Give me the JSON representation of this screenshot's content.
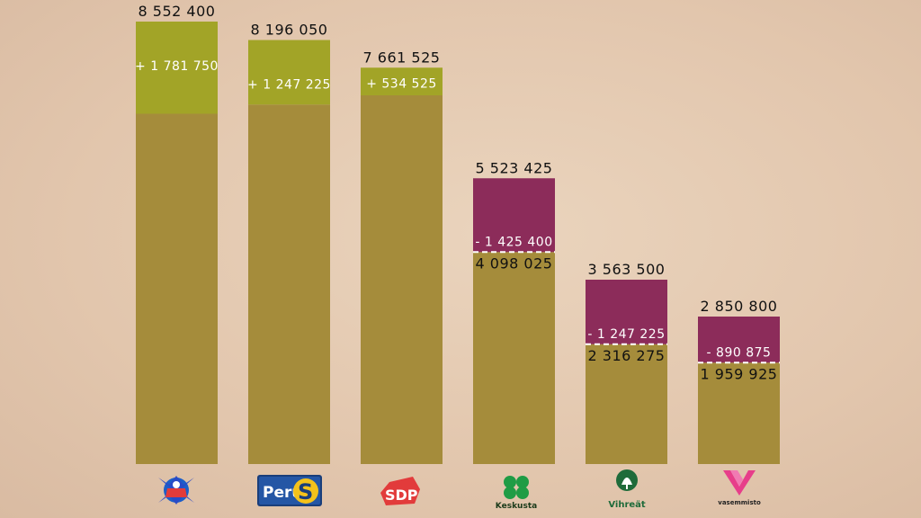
{
  "chart_data": {
    "type": "bar",
    "stacked": true,
    "ylim": [
      0,
      9000000
    ],
    "grid": false,
    "legend": "none",
    "categories": [
      "Kokoomus",
      "Perussuomalaiset",
      "SDP",
      "Keskusta",
      "Vihreät",
      "Vasemmistoliitto"
    ],
    "bars": [
      {
        "total": 8552400,
        "base": 6770650,
        "change": 1781750,
        "total_label": "8 552 400",
        "change_label": "+ 1 781 750",
        "base_label": "",
        "direction": "gain"
      },
      {
        "total": 8196050,
        "base": 6948825,
        "change": 1247225,
        "total_label": "8 196 050",
        "change_label": "+ 1 247 225",
        "base_label": "",
        "direction": "gain"
      },
      {
        "total": 7661525,
        "base": 7127000,
        "change": 534525,
        "total_label": "7 661 525",
        "change_label": "+ 534 525",
        "base_label": "",
        "direction": "gain"
      },
      {
        "total": 5523425,
        "base": 4098025,
        "change": 1425400,
        "total_label": "5 523 425",
        "change_label": "- 1 425 400",
        "base_label": "4 098 025",
        "direction": "loss"
      },
      {
        "total": 3563500,
        "base": 2316275,
        "change": 1247225,
        "total_label": "3 563 500",
        "change_label": "- 1 247 225",
        "base_label": "2 316 275",
        "direction": "loss"
      },
      {
        "total": 2850800,
        "base": 1959925,
        "change": 890875,
        "total_label": "2 850 800",
        "change_label": "- 890 875",
        "base_label": "1 959 925",
        "direction": "loss"
      }
    ],
    "colors": {
      "base": "#a58c3b",
      "gain": "#a2a427",
      "loss": "#8c2c5a"
    }
  },
  "logos": [
    {
      "name": "kokoomus-logo",
      "text": ""
    },
    {
      "name": "perussuomalaiset-logo",
      "text": "Perus",
      "badge": "S"
    },
    {
      "name": "sdp-logo",
      "text": "SDP"
    },
    {
      "name": "keskusta-logo",
      "text": "Keskusta"
    },
    {
      "name": "vihreat-logo",
      "text": "Vihreät"
    },
    {
      "name": "vasemmisto-logo",
      "text": "vasemmisto"
    }
  ]
}
